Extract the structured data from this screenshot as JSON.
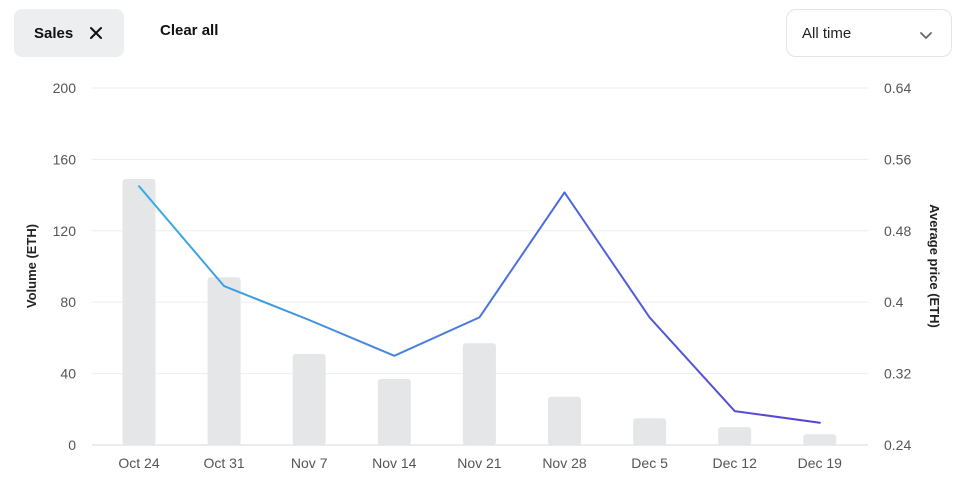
{
  "filters": {
    "chip_label": "Sales",
    "clear_all": "Clear all",
    "time_range": "All time"
  },
  "icons": {
    "chip_remove": "close-icon",
    "dropdown": "chevron-down-icon"
  },
  "colors": {
    "bar": "#e4e6e8",
    "grid": "#ebedef",
    "line_start": "#3aaee0",
    "line_end": "#5a3fd6"
  },
  "chart_data": {
    "type": "bar",
    "categories": [
      "Oct 24",
      "Oct 31",
      "Nov 7",
      "Nov 14",
      "Nov 21",
      "Nov 28",
      "Dec 5",
      "Dec 12",
      "Dec 19"
    ],
    "ylabel": "Volume (ETH)",
    "ylim": [
      0,
      200
    ],
    "yticks": [
      "0",
      "40",
      "80",
      "120",
      "160",
      "200"
    ],
    "y2label": "Average price (ETH)",
    "y2lim": [
      0.24,
      0.64
    ],
    "y2ticks": [
      "0.24",
      "0.32",
      "0.4",
      "0.48",
      "0.56",
      "0.64"
    ],
    "grid": true,
    "series": [
      {
        "type": "bar",
        "axis": "left",
        "values": [
          149,
          94,
          51,
          37,
          57,
          27,
          15,
          10,
          6
        ]
      },
      {
        "type": "line",
        "axis": "right",
        "values": [
          0.53,
          0.418,
          0.38,
          0.34,
          0.383,
          0.523,
          0.383,
          0.278,
          0.265
        ]
      }
    ]
  }
}
